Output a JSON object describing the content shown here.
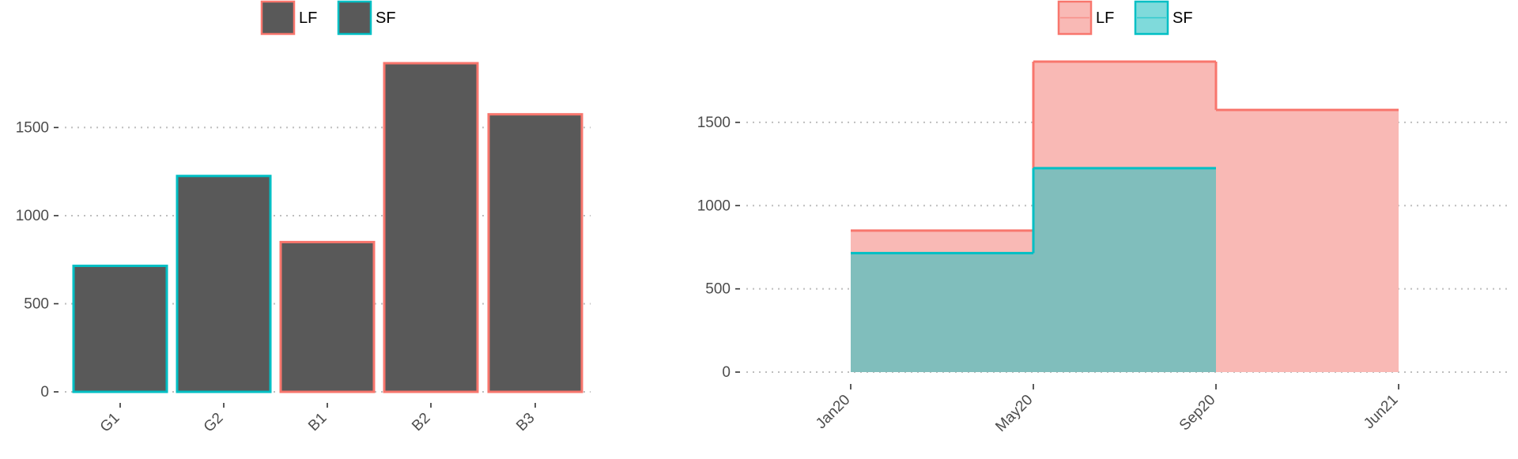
{
  "colors": {
    "lf": "#F8766D",
    "sf": "#00BFC4",
    "bar_fill": "#595959",
    "lf_fill": "#F9B9B5",
    "sf_fill": "#80BEBC",
    "grid": "#BEBEBE",
    "axis_text": "#4D4D4D"
  },
  "chart_data": [
    {
      "type": "bar",
      "title": "",
      "xlabel": "",
      "ylabel": "",
      "categories": [
        "G1",
        "G2",
        "B1",
        "B2",
        "B3"
      ],
      "values": [
        715,
        1225,
        850,
        1865,
        1575
      ],
      "outline_group": [
        "SF",
        "SF",
        "LF",
        "LF",
        "LF"
      ],
      "ylim": [
        0,
        1865
      ],
      "yticks": [
        0,
        500,
        1000,
        1500
      ],
      "ytick_labels": [
        "0",
        "500",
        "1000",
        "1500"
      ],
      "grid": "horizontal dotted",
      "legend": {
        "placement": "top",
        "items": [
          {
            "label": "LF",
            "group": "LF"
          },
          {
            "label": "SF",
            "group": "SF"
          }
        ]
      }
    },
    {
      "type": "area",
      "title": "",
      "xlabel": "",
      "ylabel": "",
      "x": [
        "Jan20",
        "May20",
        "Sep20",
        "Jun21"
      ],
      "xtick_labels": [
        "Jan20",
        "May20",
        "Sep20",
        "Jun21"
      ],
      "step": true,
      "series": [
        {
          "name": "LF",
          "values": [
            850,
            1865,
            1575,
            null
          ]
        },
        {
          "name": "SF",
          "values": [
            715,
            1225,
            0,
            null
          ]
        }
      ],
      "ylim": [
        0,
        1865
      ],
      "yticks": [
        0,
        500,
        1000,
        1500
      ],
      "ytick_labels": [
        "0",
        "500",
        "1000",
        "1500"
      ],
      "grid": "horizontal dotted",
      "legend": {
        "placement": "top",
        "items": [
          {
            "label": "LF",
            "group": "LF"
          },
          {
            "label": "SF",
            "group": "SF"
          }
        ]
      }
    }
  ]
}
